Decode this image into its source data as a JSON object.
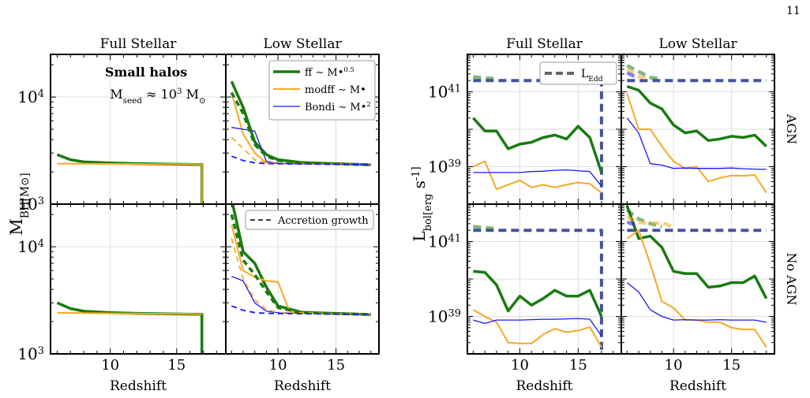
{
  "page_number": "11",
  "colors": {
    "ff": "#1a7a10",
    "modff": "#f7a825",
    "bondi": "#1a1aee",
    "edd": "#3a4a9a",
    "grid": "#dddddd"
  },
  "legend_labels": {
    "ff": "ff ∼ M•^0.5",
    "modff": "modff ∼ M•",
    "bondi": "Bondi ∼ M•^2",
    "accretion": "Accretion growth",
    "edd": "L_Edd"
  },
  "chart_data": [
    {
      "type": "line",
      "column_title": "Full Stellar",
      "row": "top",
      "annotation": [
        "Small halos",
        "M_seed ≈ 10^3 M_⊙"
      ],
      "ylabel": "M_BH[M_⊙]",
      "xlabel": "",
      "yscale": "log",
      "xlim": [
        5.5,
        18.7
      ],
      "ylim": [
        1000,
        25000
      ],
      "yticks": [
        "10^3",
        "10^4"
      ],
      "series": [
        {
          "key": "ff",
          "x": [
            6,
            7,
            8,
            10,
            12,
            14,
            16,
            16.9,
            16.9
          ],
          "y": [
            2900,
            2600,
            2480,
            2420,
            2390,
            2370,
            2350,
            2340,
            1000
          ]
        },
        {
          "key": "modff",
          "x": [
            6,
            7,
            8,
            10,
            12,
            14,
            16,
            16.9,
            16.9
          ],
          "y": [
            2390,
            2385,
            2380,
            2375,
            2370,
            2365,
            2360,
            2350,
            1000
          ]
        }
      ]
    },
    {
      "type": "line",
      "column_title": "Low Stellar",
      "row": "top",
      "yscale": "log",
      "xlim": [
        5.5,
        18.7
      ],
      "ylim": [
        1000,
        25000
      ],
      "series": [
        {
          "key": "ff",
          "x": [
            6,
            7,
            8,
            9,
            10,
            12,
            14,
            16,
            18
          ],
          "y": [
            14000,
            8000,
            3800,
            2900,
            2600,
            2450,
            2400,
            2370,
            2330
          ]
        },
        {
          "key": "modff",
          "x": [
            6,
            7,
            8,
            9,
            10,
            12,
            14,
            16,
            18
          ],
          "y": [
            11000,
            4500,
            3000,
            2430,
            2400,
            2380,
            2370,
            2360,
            2340
          ]
        },
        {
          "key": "bondi",
          "x": [
            6,
            7,
            8,
            9,
            10,
            12,
            14,
            16,
            18
          ],
          "y": [
            5200,
            5000,
            4800,
            2500,
            2400,
            2380,
            2370,
            2360,
            2340
          ]
        },
        {
          "key": "ff",
          "dashed": true,
          "x": [
            6,
            7,
            8,
            9,
            10,
            12,
            14,
            16,
            18
          ],
          "y": [
            11000,
            7000,
            3600,
            2800,
            2550,
            2430,
            2390,
            2360,
            2330
          ]
        },
        {
          "key": "modff",
          "dashed": true,
          "x": [
            6,
            7,
            8,
            9,
            10,
            12,
            14,
            16,
            18
          ],
          "y": [
            4200,
            3300,
            2600,
            2420,
            2400,
            2380,
            2370,
            2360,
            2340
          ]
        },
        {
          "key": "bondi",
          "dashed": true,
          "x": [
            6,
            7,
            8,
            9,
            10,
            12,
            14,
            16,
            18
          ],
          "y": [
            2800,
            2550,
            2430,
            2390,
            2380,
            2370,
            2360,
            2350,
            2340
          ]
        }
      ]
    },
    {
      "type": "line",
      "column_title": "Full Stellar",
      "row": "bottom",
      "xlabel": "Redshift",
      "yscale": "log",
      "xlim": [
        5.5,
        18.7
      ],
      "ylim": [
        1000,
        25000
      ],
      "xticks": [
        10,
        15
      ],
      "yticks": [
        "10^3",
        "10^4"
      ],
      "series": [
        {
          "key": "ff",
          "x": [
            6,
            7,
            8,
            10,
            12,
            14,
            16,
            16.9,
            16.9
          ],
          "y": [
            3000,
            2650,
            2500,
            2430,
            2390,
            2370,
            2350,
            2340,
            1000
          ]
        },
        {
          "key": "modff",
          "x": [
            6,
            7,
            8,
            10,
            12,
            14,
            16,
            16.9
          ],
          "y": [
            2420,
            2410,
            2400,
            2390,
            2380,
            2370,
            2360,
            2350
          ]
        }
      ]
    },
    {
      "type": "line",
      "column_title": "Low Stellar",
      "row": "bottom",
      "xlabel": "Redshift",
      "yscale": "log",
      "xlim": [
        5.5,
        18.7
      ],
      "ylim": [
        1000,
        25000
      ],
      "xticks": [
        10,
        15
      ],
      "series": [
        {
          "key": "ff",
          "x": [
            6,
            7,
            8,
            9,
            10,
            12,
            14,
            16,
            18
          ],
          "y": [
            28000,
            9000,
            7000,
            4200,
            2800,
            2450,
            2400,
            2370,
            2330
          ]
        },
        {
          "key": "modff",
          "x": [
            6,
            7,
            8,
            9,
            10,
            11,
            12,
            14,
            16,
            18
          ],
          "y": [
            16000,
            6000,
            5200,
            4800,
            4700,
            2500,
            2420,
            2380,
            2360,
            2340
          ]
        },
        {
          "key": "bondi",
          "x": [
            6,
            7,
            8,
            9,
            10,
            12,
            14,
            16,
            18
          ],
          "y": [
            5300,
            4800,
            3000,
            2500,
            2420,
            2390,
            2380,
            2360,
            2340
          ]
        },
        {
          "key": "ff",
          "dashed": true,
          "x": [
            6,
            7,
            8,
            9,
            10,
            12,
            14,
            16,
            18
          ],
          "y": [
            20000,
            7500,
            5500,
            3800,
            2700,
            2430,
            2390,
            2360,
            2330
          ]
        },
        {
          "key": "modff",
          "dashed": true,
          "x": [
            6,
            7,
            8,
            9,
            10,
            12,
            14,
            16,
            18
          ],
          "y": [
            12000,
            5000,
            3200,
            2600,
            2430,
            2400,
            2380,
            2360,
            2340
          ]
        },
        {
          "key": "bondi",
          "dashed": true,
          "x": [
            6,
            7,
            8,
            9,
            10,
            12,
            14,
            16,
            18
          ],
          "y": [
            2800,
            2550,
            2430,
            2390,
            2380,
            2370,
            2360,
            2350,
            2340
          ]
        }
      ]
    },
    {
      "type": "line",
      "column_title": "Full Stellar",
      "row_label": "AGN",
      "ylabel": "L_bol[erg s^-1]",
      "yscale": "log",
      "xlim": [
        5.5,
        18.7
      ],
      "ylim": [
        1e+38,
        1e+42
      ],
      "yticks": [
        "10^39",
        "10^41"
      ],
      "series": [
        {
          "key": "ff",
          "x": [
            6,
            7,
            8,
            9,
            10,
            11,
            12,
            13,
            14,
            15,
            16,
            17
          ],
          "y": [
            2e+40,
            9e+39,
            9e+39,
            3e+39,
            4e+39,
            4.5e+39,
            6e+39,
            7e+39,
            5.5e+39,
            1.2e+40,
            6e+39,
            7e+38
          ]
        },
        {
          "key": "modff",
          "x": [
            6,
            7,
            8,
            9,
            10,
            11,
            12,
            13,
            14,
            15,
            16,
            17
          ],
          "y": [
            1e+39,
            1.4e+39,
            2.5e+38,
            3.3e+38,
            4.3e+38,
            2.8e+38,
            3.3e+38,
            2.8e+38,
            3.3e+38,
            3.8e+38,
            3.5e+38,
            2e+38
          ]
        },
        {
          "key": "bondi",
          "x": [
            6,
            7,
            8,
            9,
            10,
            11,
            12,
            13,
            14,
            15,
            16,
            17
          ],
          "y": [
            7e+38,
            7e+38,
            7e+38,
            7e+38,
            7e+38,
            7.4e+38,
            7.6e+38,
            8e+38,
            8.2e+38,
            7.8e+38,
            7.4e+38,
            3e+38
          ]
        },
        {
          "key": "edd",
          "x": [
            6,
            7,
            8,
            9,
            10,
            11,
            12,
            13,
            14,
            15,
            16,
            17,
            17,
            17
          ],
          "y": [
            2e+41,
            2e+41,
            2e+41,
            2e+41,
            2e+41,
            2e+41,
            2e+41,
            2e+41,
            2e+41,
            2e+41,
            2e+41,
            2e+41,
            2e+40,
            1e+38
          ]
        },
        {
          "key": "ff",
          "edd": true,
          "x": [
            6,
            8
          ],
          "y": [
            2.5e+41,
            2.2e+41
          ]
        }
      ]
    },
    {
      "type": "line",
      "column_title": "Low Stellar",
      "row_label": "AGN",
      "yscale": "log",
      "xlim": [
        5.5,
        18.7
      ],
      "ylim": [
        1e+38,
        1e+42
      ],
      "series": [
        {
          "key": "ff",
          "x": [
            6,
            7,
            8,
            9,
            10,
            11,
            12,
            13,
            14,
            15,
            16,
            17,
            18
          ],
          "y": [
            1.4e+41,
            1.1e+41,
            5e+40,
            3.5e+40,
            1.3e+40,
            8e+39,
            9e+39,
            5e+39,
            5.5e+39,
            6.5e+39,
            6e+39,
            7e+39,
            3.5e+39
          ]
        },
        {
          "key": "modff",
          "x": [
            6,
            7,
            8,
            9,
            10,
            11,
            12,
            13,
            14,
            15,
            16,
            17,
            18
          ],
          "y": [
            9e+40,
            1e+40,
            1e+40,
            3.5e+39,
            1.4e+39,
            9e+38,
            1e+39,
            4e+38,
            5e+38,
            5.8e+38,
            5.7e+38,
            6e+38,
            2e+38
          ]
        },
        {
          "key": "bondi",
          "x": [
            6,
            7,
            8,
            9,
            10,
            11,
            12,
            13,
            14,
            15,
            16,
            17,
            18
          ],
          "y": [
            2e+40,
            8e+39,
            1.2e+39,
            1.1e+39,
            9e+38,
            9.2e+38,
            9e+38,
            9e+38,
            9e+38,
            9.2e+38,
            8.8e+38,
            8.6e+38,
            8.5e+38
          ]
        },
        {
          "key": "edd",
          "x": [
            6,
            8,
            10,
            12,
            14,
            16,
            18
          ],
          "y": [
            2e+41,
            2e+41,
            2e+41,
            2e+41,
            2e+41,
            2e+41,
            2e+41
          ]
        },
        {
          "key": "ff",
          "edd": true,
          "x": [
            6,
            7,
            8,
            9
          ],
          "y": [
            5e+41,
            3.5e+41,
            2.4e+41,
            2.2e+41
          ]
        },
        {
          "key": "modff",
          "edd": true,
          "x": [
            6,
            7,
            8
          ],
          "y": [
            4e+41,
            2.6e+41,
            2.1e+41
          ]
        },
        {
          "key": "bondi",
          "edd": true,
          "x": [
            6,
            7
          ],
          "y": [
            3.2e+41,
            2.3e+41
          ]
        }
      ]
    },
    {
      "type": "line",
      "column_title": "Full Stellar",
      "row_label": "No AGN",
      "xlabel": "Redshift",
      "yscale": "log",
      "xlim": [
        5.5,
        18.7
      ],
      "ylim": [
        1e+38,
        1e+42
      ],
      "xticks": [
        10,
        15
      ],
      "yticks": [
        "10^39",
        "10^41"
      ],
      "series": [
        {
          "key": "ff",
          "x": [
            6,
            7,
            8,
            9,
            10,
            11,
            12,
            13,
            14,
            15,
            16,
            17
          ],
          "y": [
            1.6e+40,
            1.5e+40,
            7e+39,
            1.4e+39,
            3.5e+39,
            2e+39,
            3e+39,
            5e+39,
            3.5e+39,
            3.5e+39,
            5e+39,
            1e+39
          ]
        },
        {
          "key": "modff",
          "x": [
            6,
            7,
            8,
            9,
            10,
            11,
            12,
            13,
            14,
            15,
            16,
            17
          ],
          "y": [
            1.5e+39,
            1e+39,
            7e+38,
            2e+38,
            1.9e+38,
            1.9e+38,
            3.3e+38,
            4.7e+38,
            3.8e+38,
            4.2e+38,
            5.2e+38,
            1.5e+38
          ]
        },
        {
          "key": "bondi",
          "x": [
            6,
            7,
            8,
            9,
            10,
            11,
            12,
            13,
            14,
            15,
            16,
            17
          ],
          "y": [
            8e+38,
            6.5e+38,
            8e+38,
            8e+38,
            8e+38,
            8.2e+38,
            8.4e+38,
            8.4e+38,
            8.6e+38,
            8.8e+38,
            8.4e+38,
            3e+38
          ]
        },
        {
          "key": "edd",
          "x": [
            6,
            8,
            10,
            12,
            14,
            16,
            17,
            17,
            17
          ],
          "y": [
            2e+41,
            2e+41,
            2e+41,
            2e+41,
            2e+41,
            2e+41,
            2e+41,
            2e+40,
            1e+38
          ]
        },
        {
          "key": "ff",
          "edd": true,
          "x": [
            6,
            8
          ],
          "y": [
            2.5e+41,
            2.2e+41
          ]
        }
      ]
    },
    {
      "type": "line",
      "column_title": "Low Stellar",
      "row_label": "No AGN",
      "xlabel": "Redshift",
      "yscale": "log",
      "xlim": [
        5.5,
        18.7
      ],
      "ylim": [
        1e+38,
        1e+42
      ],
      "xticks": [
        10,
        15
      ],
      "series": [
        {
          "key": "ff",
          "x": [
            6,
            7,
            8,
            9,
            10,
            11,
            12,
            13,
            14,
            15,
            16,
            17,
            18
          ],
          "y": [
            9e+41,
            1.2e+41,
            1.4e+41,
            7e+40,
            1.6e+40,
            1.4e+40,
            1.4e+40,
            6e+39,
            6.5e+39,
            8e+39,
            8e+39,
            1.2e+40,
            3e+39
          ]
        },
        {
          "key": "modff",
          "x": [
            6,
            7,
            8,
            9,
            10,
            11,
            12,
            13,
            14,
            15,
            16,
            17,
            18
          ],
          "y": [
            1.2e+41,
            2e+41,
            2.5e+40,
            2.5e+39,
            1.7e+39,
            8e+38,
            8e+38,
            7e+38,
            7e+38,
            5e+38,
            4.5e+38,
            4.5e+38,
            1.5e+38
          ]
        },
        {
          "key": "bondi",
          "x": [
            6,
            7,
            8,
            9,
            10,
            11,
            12,
            13,
            14,
            15,
            16,
            17,
            18
          ],
          "y": [
            8e+39,
            4.5e+39,
            1.5e+39,
            1e+39,
            8e+38,
            8.2e+38,
            8e+38,
            8e+38,
            8.2e+38,
            8e+38,
            8e+38,
            8e+38,
            7e+38
          ]
        },
        {
          "key": "edd",
          "x": [
            6,
            8,
            10,
            12,
            14,
            16,
            18
          ],
          "y": [
            2e+41,
            2e+41,
            2e+41,
            2e+41,
            2e+41,
            2e+41,
            2e+41
          ]
        },
        {
          "key": "ff",
          "edd": true,
          "x": [
            6,
            7,
            8,
            9
          ],
          "y": [
            7e+41,
            4e+41,
            3e+41,
            2.5e+41
          ]
        },
        {
          "key": "modff",
          "edd": true,
          "x": [
            6,
            7,
            8,
            9,
            10
          ],
          "y": [
            4.5e+41,
            3.3e+41,
            3e+41,
            3.2e+41,
            2.4e+41
          ]
        },
        {
          "key": "bondi",
          "edd": true,
          "x": [
            6,
            7
          ],
          "y": [
            3.3e+41,
            2.6e+41
          ]
        }
      ]
    }
  ]
}
